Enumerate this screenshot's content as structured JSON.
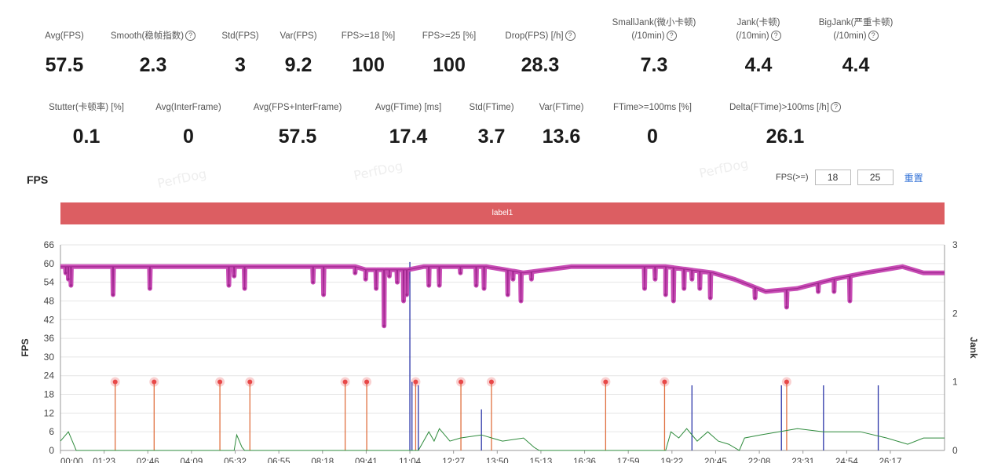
{
  "watermark": "PerfDog",
  "metrics_row1": [
    {
      "label": "Avg(FPS)",
      "value": "57.5",
      "help": false
    },
    {
      "label": "Smooth(稳帧指数)",
      "value": "2.3",
      "help": true
    },
    {
      "label": "Std(FPS)",
      "value": "3",
      "help": false
    },
    {
      "label": "Var(FPS)",
      "value": "9.2",
      "help": false
    },
    {
      "label": "FPS>=18 [%]",
      "value": "100",
      "help": false
    },
    {
      "label": "FPS>=25 [%]",
      "value": "100",
      "help": false
    },
    {
      "label": "Drop(FPS) [/h]",
      "value": "28.3",
      "help": true
    },
    {
      "label": "SmallJank(微小卡顿)",
      "label2": "(/10min)",
      "value": "7.3",
      "help": true
    },
    {
      "label": "Jank(卡顿)",
      "label2": "(/10min)",
      "value": "4.4",
      "help": true
    },
    {
      "label": "BigJank(严重卡顿)",
      "label2": "(/10min)",
      "value": "4.4",
      "help": true
    }
  ],
  "metrics_row2": [
    {
      "label": "Stutter(卡顿率) [%]",
      "value": "0.1",
      "help": false
    },
    {
      "label": "Avg(InterFrame)",
      "value": "0",
      "help": false
    },
    {
      "label": "Avg(FPS+InterFrame)",
      "value": "57.5",
      "help": false
    },
    {
      "label": "Avg(FTime) [ms]",
      "value": "17.4",
      "help": false
    },
    {
      "label": "Std(FTime)",
      "value": "3.7",
      "help": false
    },
    {
      "label": "Var(FTime)",
      "value": "13.6",
      "help": false
    },
    {
      "label": "FTime>=100ms [%]",
      "value": "0",
      "help": false
    },
    {
      "label": "Delta(FTime)>100ms [/h]",
      "value": "26.1",
      "help": true
    }
  ],
  "section_title": "FPS",
  "fps_threshold": {
    "label": "FPS(>=)",
    "value1": "18",
    "value2": "25",
    "reset": "重置"
  },
  "label_bar": {
    "text": "label1",
    "color": "#dc5e62"
  },
  "chart_data": {
    "type": "line",
    "ylabel": "FPS",
    "ylabel_right": "Jank",
    "ylim": [
      0,
      66
    ],
    "yticks": [
      0,
      6,
      12,
      18,
      24,
      30,
      36,
      42,
      48,
      54,
      60,
      66
    ],
    "ylim_right": [
      0,
      3
    ],
    "yticks_right": [
      0,
      1,
      2,
      3
    ],
    "xlim_seconds": [
      0,
      1680
    ],
    "xtick_labels": [
      "00:00",
      "01:23",
      "02:46",
      "04:09",
      "05:32",
      "06:55",
      "08:18",
      "09:41",
      "11:04",
      "12:27",
      "13:50",
      "15:13",
      "16:36",
      "17:59",
      "19:22",
      "20:45",
      "22:08",
      "23:31",
      "24:54",
      "26:17"
    ],
    "xtick_seconds": [
      0,
      83,
      166,
      249,
      332,
      415,
      498,
      581,
      664,
      747,
      830,
      913,
      996,
      1079,
      1162,
      1245,
      1328,
      1411,
      1494,
      1577
    ],
    "grid": true,
    "colors": {
      "fps": "#c23aad",
      "interframe": "#2e8b3c",
      "jank": "#2b35a8",
      "bigjank": "#e07040",
      "bigjank_marker": "#e84848"
    },
    "fps_series": {
      "name": "FPS",
      "baseline": [
        [
          0,
          59
        ],
        [
          560,
          59
        ],
        [
          580,
          58
        ],
        [
          660,
          58
        ],
        [
          690,
          59
        ],
        [
          810,
          59
        ],
        [
          880,
          57
        ],
        [
          970,
          59
        ],
        [
          1150,
          59
        ],
        [
          1240,
          57
        ],
        [
          1280,
          55
        ],
        [
          1340,
          51
        ],
        [
          1400,
          52
        ],
        [
          1470,
          55
        ],
        [
          1530,
          57
        ],
        [
          1600,
          59
        ],
        [
          1640,
          57
        ],
        [
          1680,
          57
        ]
      ],
      "dips": [
        [
          10,
          57
        ],
        [
          15,
          55
        ],
        [
          20,
          53
        ],
        [
          100,
          50
        ],
        [
          170,
          52
        ],
        [
          320,
          53
        ],
        [
          330,
          56
        ],
        [
          350,
          52
        ],
        [
          480,
          54
        ],
        [
          500,
          50
        ],
        [
          560,
          57
        ],
        [
          580,
          55
        ],
        [
          600,
          52
        ],
        [
          615,
          40
        ],
        [
          625,
          56
        ],
        [
          640,
          54
        ],
        [
          652,
          48
        ],
        [
          658,
          50
        ],
        [
          700,
          53
        ],
        [
          720,
          53
        ],
        [
          760,
          57
        ],
        [
          790,
          53
        ],
        [
          805,
          52
        ],
        [
          850,
          50
        ],
        [
          860,
          55
        ],
        [
          875,
          48
        ],
        [
          895,
          55
        ],
        [
          1110,
          52
        ],
        [
          1130,
          55
        ],
        [
          1150,
          50
        ],
        [
          1165,
          48
        ],
        [
          1185,
          52
        ],
        [
          1200,
          55
        ],
        [
          1215,
          52
        ],
        [
          1235,
          49
        ],
        [
          1320,
          49
        ],
        [
          1380,
          46
        ],
        [
          1440,
          51
        ],
        [
          1470,
          51
        ],
        [
          1500,
          48
        ]
      ]
    },
    "interframe_series": {
      "name": "InterFrame",
      "points": [
        [
          0,
          3
        ],
        [
          15,
          6
        ],
        [
          25,
          2
        ],
        [
          30,
          0
        ],
        [
          330,
          0
        ],
        [
          335,
          5
        ],
        [
          345,
          1
        ],
        [
          350,
          0
        ],
        [
          680,
          0
        ],
        [
          700,
          6
        ],
        [
          710,
          3
        ],
        [
          720,
          7
        ],
        [
          740,
          3
        ],
        [
          760,
          4
        ],
        [
          800,
          5
        ],
        [
          840,
          3
        ],
        [
          880,
          4
        ],
        [
          900,
          1
        ],
        [
          910,
          0
        ],
        [
          1150,
          0
        ],
        [
          1160,
          6
        ],
        [
          1175,
          4
        ],
        [
          1190,
          7
        ],
        [
          1210,
          3
        ],
        [
          1230,
          6
        ],
        [
          1250,
          3
        ],
        [
          1270,
          2
        ],
        [
          1290,
          0
        ],
        [
          1300,
          4
        ],
        [
          1330,
          5
        ],
        [
          1400,
          7
        ],
        [
          1450,
          6
        ],
        [
          1520,
          6
        ],
        [
          1570,
          4
        ],
        [
          1610,
          2
        ],
        [
          1640,
          4
        ],
        [
          1680,
          4
        ]
      ]
    },
    "jank_spikes": [
      [
        664,
        2.75
      ],
      [
        668,
        1.0
      ],
      [
        680,
        0.95
      ],
      [
        800,
        0.6
      ],
      [
        1200,
        0.95
      ],
      [
        1370,
        0.95
      ],
      [
        1450,
        0.95
      ],
      [
        1554,
        0.95
      ]
    ],
    "bigjank_markers": [
      [
        104,
        1
      ],
      [
        178,
        1
      ],
      [
        303,
        1
      ],
      [
        360,
        1
      ],
      [
        541,
        1
      ],
      [
        582,
        1
      ],
      [
        675,
        1
      ],
      [
        761,
        1
      ],
      [
        819,
        1
      ],
      [
        1036,
        1
      ],
      [
        1148,
        1
      ],
      [
        1380,
        1
      ]
    ]
  }
}
